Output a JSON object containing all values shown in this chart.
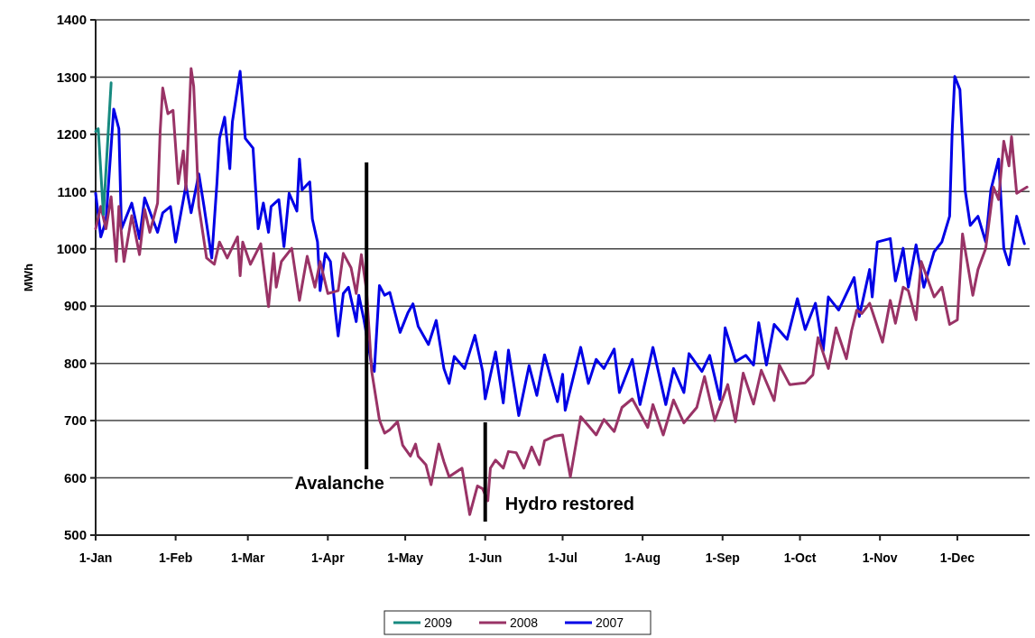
{
  "chart_data": {
    "type": "line",
    "ylabel": "MWh",
    "ylim": [
      500,
      1400
    ],
    "yticks": [
      500,
      600,
      700,
      800,
      900,
      1000,
      1100,
      1200,
      1300,
      1400
    ],
    "xlim": [
      "--01-01",
      "--12-29"
    ],
    "xticks": [
      {
        "value": "--01-01",
        "label": "1-Jan"
      },
      {
        "value": "--02-01",
        "label": "1-Feb"
      },
      {
        "value": "--03-01",
        "label": "1-Mar"
      },
      {
        "value": "--04-01",
        "label": "1-Apr"
      },
      {
        "value": "--05-01",
        "label": "1-May"
      },
      {
        "value": "--06-01",
        "label": "1-Jun"
      },
      {
        "value": "--07-01",
        "label": "1-Jul"
      },
      {
        "value": "--08-01",
        "label": "1-Aug"
      },
      {
        "value": "--09-01",
        "label": "1-Sep"
      },
      {
        "value": "--10-01",
        "label": "1-Oct"
      },
      {
        "value": "--11-01",
        "label": "1-Nov"
      },
      {
        "value": "--12-01",
        "label": "1-Dec"
      }
    ],
    "grid": "y",
    "legend": "bottom",
    "marker": "none",
    "line_style": "solid",
    "ref_lines": [
      {
        "axis": "x",
        "value": "--04-16",
        "label": "Avalanche",
        "color": "#000000"
      },
      {
        "axis": "x",
        "value": "--06-01",
        "label": "Hydro restored",
        "color": "#000000"
      }
    ],
    "series": [
      {
        "name": "2009",
        "color": "#178a80",
        "x": [
          "--01-01",
          "--01-02",
          "--01-04",
          "--01-07"
        ],
        "values": [
          1205,
          1210,
          1060,
          1290
        ]
      },
      {
        "name": "2008",
        "color": "#993366",
        "x": [
          "--01-01",
          "--01-03",
          "--01-05",
          "--01-07",
          "--01-09",
          "--01-10",
          "--01-12",
          "--01-15",
          "--01-18",
          "--01-20",
          "--01-22",
          "--01-25",
          "--01-26",
          "--01-27",
          "--01-29",
          "--01-31",
          "--02-02",
          "--02-04",
          "--02-05",
          "--02-07",
          "--02-08",
          "--02-10",
          "--02-13",
          "--02-16",
          "--02-18",
          "--02-21",
          "--02-25",
          "--02-26",
          "--02-27",
          "--03-02",
          "--03-06",
          "--03-09",
          "--03-11",
          "--03-12",
          "--03-14",
          "--03-18",
          "--03-21",
          "--03-24",
          "--03-27",
          "--03-29",
          "--04-01",
          "--04-05",
          "--04-07",
          "--04-10",
          "--04-12",
          "--04-14",
          "--04-16",
          "--04-18",
          "--04-21",
          "--04-23",
          "--04-25",
          "--04-28",
          "--04-30",
          "--05-03",
          "--05-05",
          "--05-06",
          "--05-09",
          "--05-11",
          "--05-14",
          "--05-16",
          "--05-18",
          "--05-23",
          "--05-26",
          "--05-29",
          "--05-31",
          "--06-02",
          "--06-03",
          "--06-05",
          "--06-08",
          "--06-10",
          "--06-13",
          "--06-16",
          "--06-19",
          "--06-22",
          "--06-24",
          "--06-28",
          "--07-01",
          "--07-04",
          "--07-08",
          "--07-11",
          "--07-14",
          "--07-17",
          "--07-21",
          "--07-24",
          "--07-28",
          "--08-03",
          "--08-05",
          "--08-09",
          "--08-13",
          "--08-17",
          "--08-22",
          "--08-25",
          "--08-29",
          "--09-03",
          "--09-06",
          "--09-09",
          "--09-13",
          "--09-16",
          "--09-21",
          "--09-23",
          "--09-27",
          "--10-03",
          "--10-06",
          "--10-08",
          "--10-12",
          "--10-15",
          "--10-19",
          "--10-21",
          "--10-23",
          "--10-25",
          "--10-28",
          "--11-02",
          "--11-05",
          "--11-07",
          "--11-10",
          "--11-12",
          "--11-15",
          "--11-17",
          "--11-22",
          "--11-25",
          "--11-28",
          "--12-01",
          "--12-03",
          "--12-07",
          "--12-09",
          "--12-12",
          "--12-15",
          "--12-17",
          "--12-19",
          "--12-21",
          "--12-22",
          "--12-24",
          "--12-28"
        ],
        "values": [
          1035,
          1074,
          1035,
          1091,
          978,
          1074,
          978,
          1058,
          990,
          1069,
          1029,
          1080,
          1205,
          1281,
          1236,
          1242,
          1114,
          1171,
          1103,
          1315,
          1284,
          1074,
          984,
          973,
          1012,
          984,
          1021,
          953,
          1012,
          973,
          1009,
          899,
          992,
          933,
          978,
          1001,
          910,
          987,
          933,
          978,
          922,
          927,
          992,
          967,
          922,
          990,
          927,
          786,
          701,
          678,
          684,
          698,
          657,
          638,
          659,
          638,
          623,
          588,
          659,
          628,
          602,
          617,
          536,
          586,
          581,
          560,
          617,
          631,
          617,
          646,
          644,
          617,
          654,
          623,
          665,
          673,
          675,
          602,
          707,
          691,
          675,
          702,
          681,
          723,
          738,
          688,
          728,
          675,
          736,
          696,
          723,
          777,
          700,
          763,
          698,
          783,
          729,
          788,
          735,
          797,
          763,
          766,
          780,
          845,
          791,
          862,
          808,
          857,
          893,
          887,
          905,
          837,
          910,
          870,
          933,
          927,
          876,
          978,
          916,
          933,
          868,
          876,
          1026,
          919,
          964,
          1001,
          1108,
          1086,
          1188,
          1145,
          1196,
          1097,
          1108
        ]
      },
      {
        "name": "2007",
        "color": "#0000e6",
        "x": [
          "--01-01",
          "--01-03",
          "--01-05",
          "--01-08",
          "--01-10",
          "--01-11",
          "--01-15",
          "--01-18",
          "--01-20",
          "--01-25",
          "--01-27",
          "--01-30",
          "--02-01",
          "--02-04",
          "--02-05",
          "--02-07",
          "--02-10",
          "--02-12",
          "--02-15",
          "--02-17",
          "--02-18",
          "--02-20",
          "--02-22",
          "--02-23",
          "--02-26",
          "--02-28",
          "--03-03",
          "--03-05",
          "--03-07",
          "--03-09",
          "--03-10",
          "--03-13",
          "--03-15",
          "--03-17",
          "--03-20",
          "--03-21",
          "--03-22",
          "--03-25",
          "--03-26",
          "--03-28",
          "--03-29",
          "--03-31",
          "--04-02",
          "--04-04",
          "--04-05",
          "--04-07",
          "--04-09",
          "--04-12",
          "--04-13",
          "--04-15",
          "--04-18",
          "--04-19",
          "--04-21",
          "--04-23",
          "--04-25",
          "--04-29",
          "--05-02",
          "--05-04",
          "--05-06",
          "--05-10",
          "--05-13",
          "--05-16",
          "--05-18",
          "--05-20",
          "--05-24",
          "--05-28",
          "--05-31",
          "--06-01",
          "--06-05",
          "--06-08",
          "--06-10",
          "--06-14",
          "--06-18",
          "--06-21",
          "--06-24",
          "--06-29",
          "--07-01",
          "--07-02",
          "--07-08",
          "--07-11",
          "--07-14",
          "--07-17",
          "--07-21",
          "--07-23",
          "--07-28",
          "--07-31",
          "--08-05",
          "--08-10",
          "--08-13",
          "--08-17",
          "--08-19",
          "--08-24",
          "--08-27",
          "--08-31",
          "--09-02",
          "--09-06",
          "--09-10",
          "--09-13",
          "--09-15",
          "--09-18",
          "--09-21",
          "--09-26",
          "--09-30",
          "--10-03",
          "--10-07",
          "--10-10",
          "--10-12",
          "--10-16",
          "--10-22",
          "--10-24",
          "--10-28",
          "--10-29",
          "--10-31",
          "--11-05",
          "--11-07",
          "--11-10",
          "--11-12",
          "--11-15",
          "--11-18",
          "--11-22",
          "--11-25",
          "--11-28",
          "--11-29",
          "--11-30",
          "--12-02",
          "--12-04",
          "--12-06",
          "--12-09",
          "--12-12",
          "--12-14",
          "--12-17",
          "--12-19",
          "--12-21",
          "--12-24",
          "--12-27"
        ],
        "values": [
          1097,
          1021,
          1049,
          1244,
          1210,
          1035,
          1080,
          1018,
          1089,
          1029,
          1063,
          1074,
          1012,
          1086,
          1111,
          1063,
          1131,
          1074,
          984,
          1114,
          1193,
          1230,
          1140,
          1222,
          1310,
          1193,
          1176,
          1035,
          1080,
          1029,
          1074,
          1086,
          1004,
          1097,
          1066,
          1157,
          1103,
          1117,
          1052,
          1012,
          927,
          992,
          978,
          888,
          848,
          922,
          933,
          873,
          919,
          876,
          797,
          786,
          936,
          919,
          924,
          854,
          888,
          904,
          865,
          833,
          875,
          791,
          765,
          812,
          791,
          849,
          786,
          738,
          820,
          731,
          823,
          709,
          796,
          744,
          815,
          733,
          781,
          718,
          828,
          765,
          807,
          791,
          825,
          749,
          807,
          728,
          828,
          728,
          791,
          749,
          817,
          786,
          814,
          737,
          862,
          803,
          814,
          797,
          871,
          797,
          868,
          842,
          913,
          859,
          905,
          822,
          916,
          893,
          950,
          882,
          964,
          916,
          1012,
          1018,
          944,
          1001,
          933,
          1007,
          933,
          995,
          1012,
          1057,
          1205,
          1301,
          1278,
          1103,
          1041,
          1057,
          1012,
          1103,
          1157,
          1001,
          972,
          1057,
          1009
        ]
      }
    ]
  }
}
